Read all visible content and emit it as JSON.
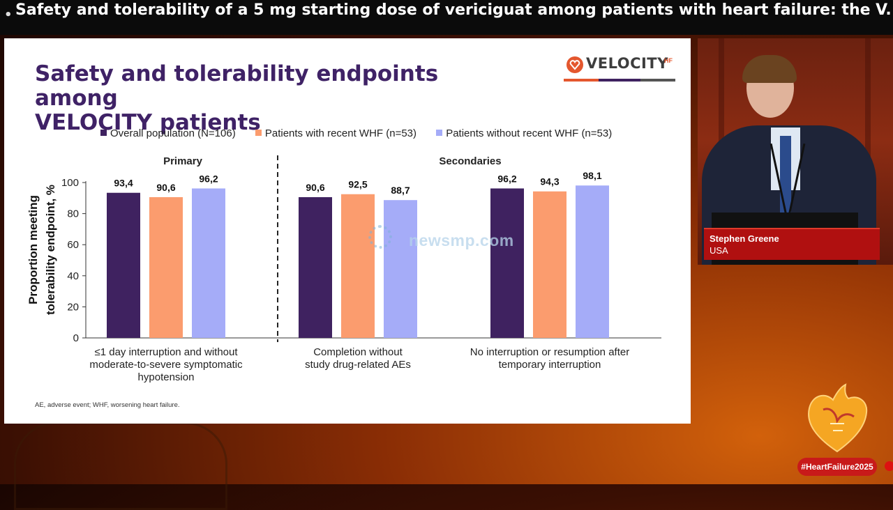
{
  "banner": {
    "title": "Safety and tolerability of a 5 mg starting dose of vericiguat among patients with heart failure: the V..."
  },
  "slide": {
    "title_line1": "Safety and tolerability endpoints among",
    "title_line2": "VELOCITY patients",
    "logo_text": "VELOCITY",
    "logo_sup": "HF",
    "footnote": "AE, adverse event; WHF, worsening heart failure."
  },
  "watermark": {
    "text": "newsmp.com"
  },
  "speaker": {
    "name": "Stephen Greene",
    "country": "USA"
  },
  "event": {
    "hashtag": "#HeartFailure2025"
  },
  "colors": {
    "overall": "#3f2260",
    "recent": "#fb9c6e",
    "without": "#a5acf8",
    "title": "#3f2266",
    "logo_orange": "#e4572e"
  },
  "chart_data": {
    "type": "bar",
    "ylabel_line1": "Proportion meeting",
    "ylabel_line2": "tolerability endpoint, %",
    "ylim": [
      0,
      100
    ],
    "yticks": [
      "0",
      "20",
      "40",
      "60",
      "80",
      "100"
    ],
    "section_labels": [
      "Primary",
      "Secondaries"
    ],
    "categories": [
      [
        "≤1 day interruption and without",
        "moderate-to-severe symptomatic",
        "hypotension"
      ],
      [
        "Completion without",
        "study drug-related AEs"
      ],
      [
        "No interruption or resumption after",
        "temporary interruption"
      ]
    ],
    "series": [
      {
        "name": "Overall population (N=106)",
        "values": [
          93.4,
          90.6,
          96.2
        ],
        "labels": [
          "93,4",
          "90,6",
          "96,2"
        ]
      },
      {
        "name": "Patients with recent WHF (n=53)",
        "values": [
          90.6,
          92.5,
          94.3
        ],
        "labels": [
          "90,6",
          "92,5",
          "94,3"
        ]
      },
      {
        "name": "Patients without recent WHF (n=53)",
        "values": [
          96.2,
          88.7,
          98.1
        ],
        "labels": [
          "96,2",
          "88,7",
          "98,1"
        ]
      }
    ]
  }
}
